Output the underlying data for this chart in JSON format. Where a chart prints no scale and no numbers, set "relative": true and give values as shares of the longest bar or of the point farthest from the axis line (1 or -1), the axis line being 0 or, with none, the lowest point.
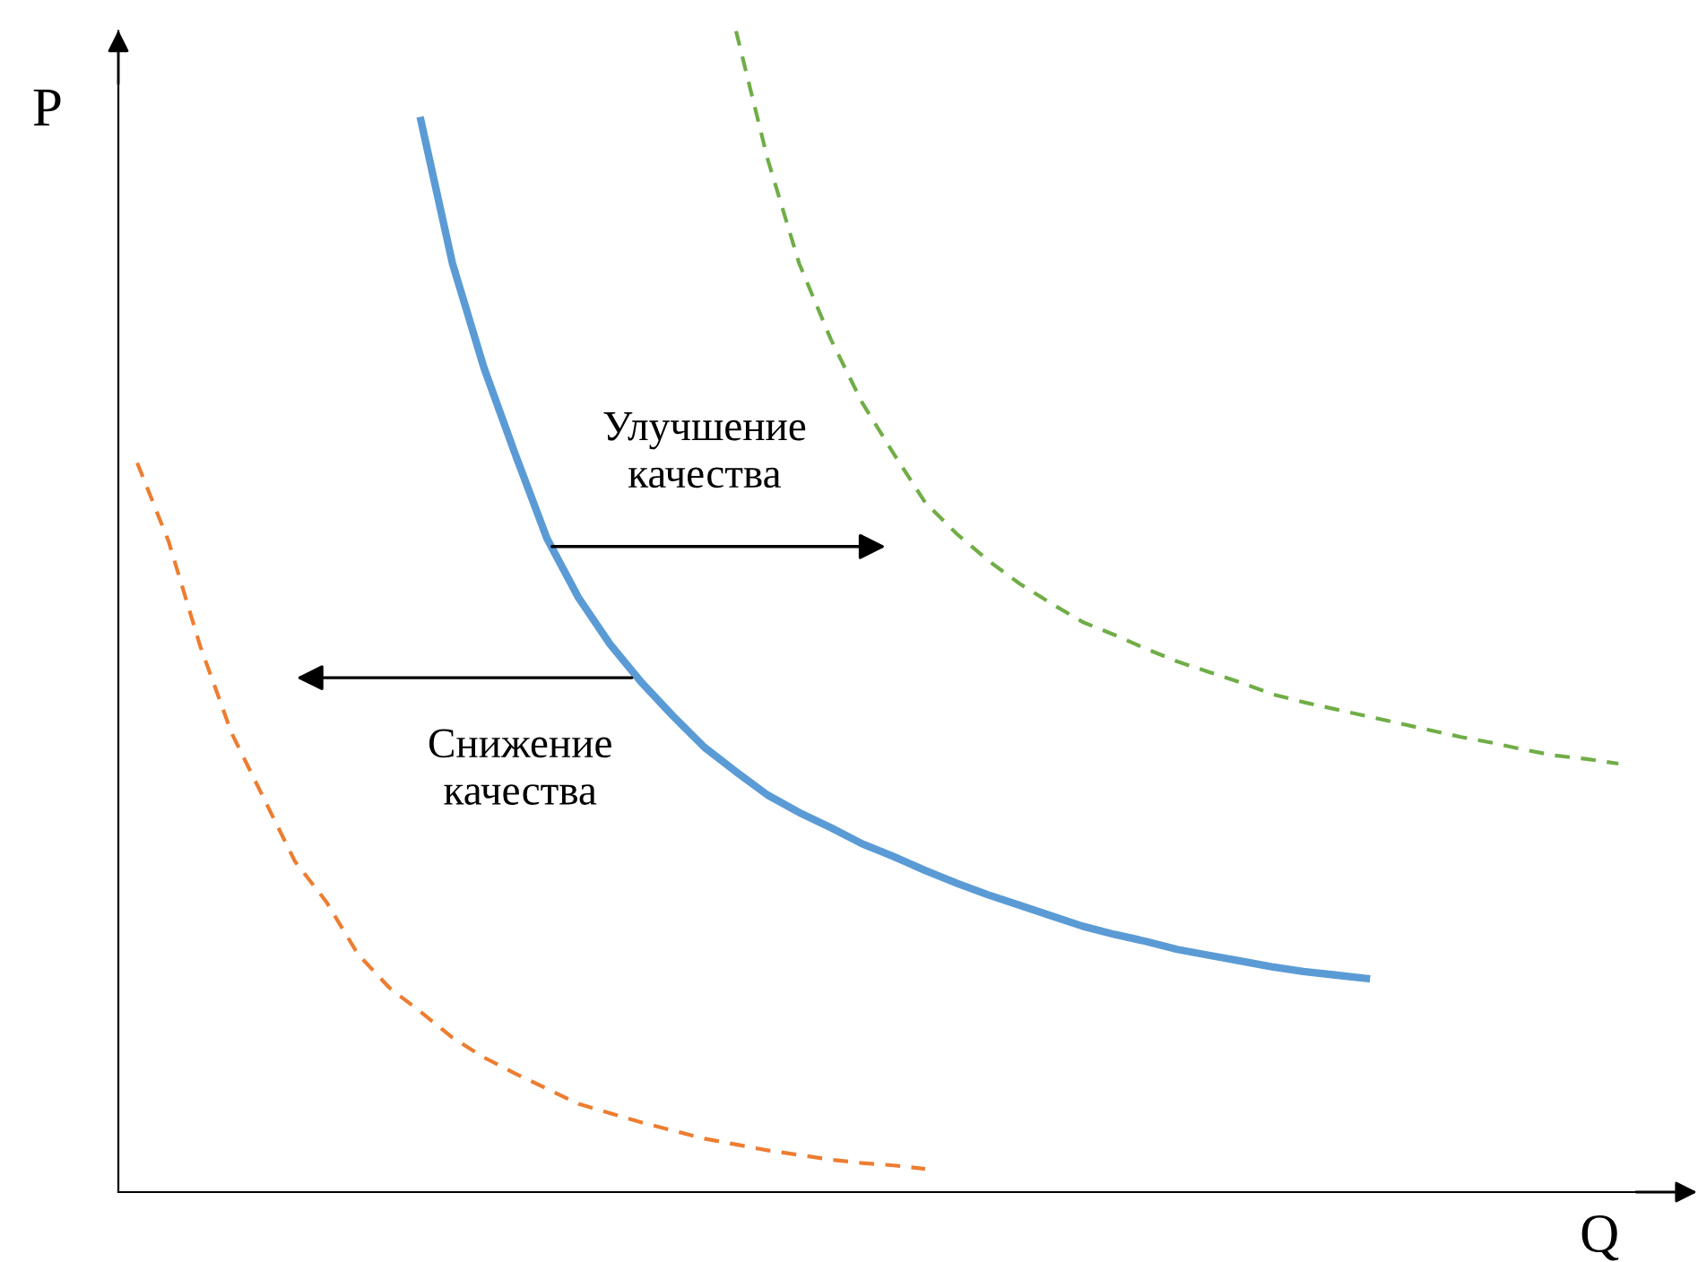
{
  "chart_data": {
    "type": "line",
    "relative": true,
    "xlabel": "Q",
    "ylabel": "P",
    "marker": "none",
    "categories": [
      null,
      null,
      null,
      null,
      null,
      null,
      null,
      null,
      null,
      null,
      null,
      null,
      null,
      null,
      null,
      null,
      null,
      null,
      null,
      null,
      null,
      null,
      null,
      null,
      null,
      null,
      null,
      null,
      null,
      null,
      null,
      null,
      null,
      null,
      null,
      null,
      null,
      null,
      null,
      null,
      null,
      null,
      null,
      null,
      null,
      null,
      null,
      null
    ],
    "series": [
      {
        "color": "#5b9bd5",
        "line_style": "solid",
        "values": [
          null,
          null,
          null,
          null,
          null,
          null,
          null,
          null,
          null,
          0.923,
          0.8,
          0.71,
          0.635,
          0.563,
          0.512,
          0.472,
          0.439,
          0.41,
          0.383,
          0.362,
          0.342,
          0.327,
          0.314,
          0.3,
          0.289,
          0.277,
          0.266,
          0.256,
          0.247,
          0.238,
          0.229,
          0.222,
          0.216,
          0.209,
          0.204,
          0.199,
          0.194,
          0.19,
          0.187,
          0.184,
          null,
          null,
          null,
          null,
          null,
          null,
          null,
          null
        ]
      },
      {
        "color": "#70ad47",
        "line_style": "dashed",
        "values": [
          null,
          null,
          null,
          null,
          null,
          null,
          null,
          null,
          null,
          null,
          null,
          null,
          null,
          null,
          null,
          null,
          null,
          null,
          null,
          1.0,
          0.89,
          0.8,
          0.735,
          0.68,
          0.636,
          0.594,
          0.567,
          0.544,
          0.524,
          0.507,
          0.491,
          0.48,
          0.468,
          0.457,
          0.448,
          0.439,
          0.429,
          0.422,
          0.416,
          0.41,
          0.404,
          0.398,
          0.392,
          0.387,
          0.381,
          0.376,
          0.373,
          0.369
        ]
      },
      {
        "color": "#ed7d31",
        "line_style": "dashed",
        "values": [
          0.628,
          0.56,
          0.47,
          0.395,
          0.34,
          0.285,
          0.25,
          0.205,
          0.176,
          0.155,
          0.133,
          0.116,
          0.102,
          0.089,
          0.076,
          0.068,
          0.06,
          0.053,
          0.046,
          0.041,
          0.036,
          0.032,
          0.028,
          0.025,
          0.023,
          0.02,
          null,
          null,
          null,
          null,
          null,
          null,
          null,
          null,
          null,
          null,
          null,
          null,
          null,
          null,
          null,
          null,
          null,
          null,
          null,
          null,
          null,
          null
        ]
      }
    ],
    "annotations": [
      "Улучшение\nкачества",
      "Снижение\nкачества"
    ]
  }
}
